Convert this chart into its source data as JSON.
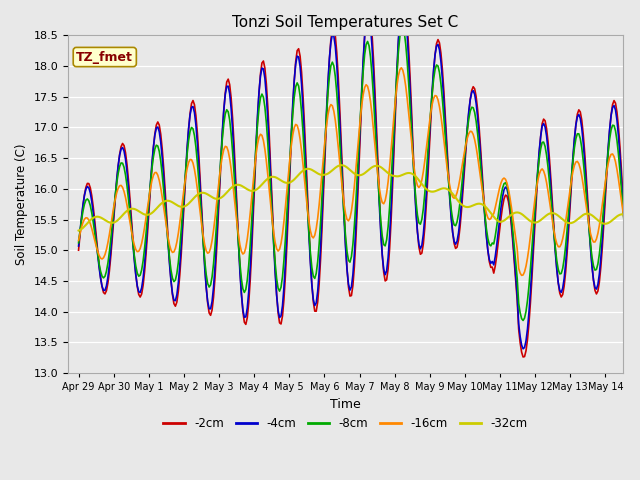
{
  "title": "Tonzi Soil Temperatures Set C",
  "xlabel": "Time",
  "ylabel": "Soil Temperature (C)",
  "ylim": [
    13.0,
    18.5
  ],
  "bg_color": "#e8e8e8",
  "label_box_text": "TZ_fmet",
  "label_box_color": "#ffffcc",
  "label_box_edge": "#aa8800",
  "series": {
    "-2cm": {
      "color": "#cc0000",
      "lw": 1.2
    },
    "-4cm": {
      "color": "#0000cc",
      "lw": 1.2
    },
    "-8cm": {
      "color": "#00aa00",
      "lw": 1.2
    },
    "-16cm": {
      "color": "#ff8800",
      "lw": 1.2
    },
    "-32cm": {
      "color": "#cccc00",
      "lw": 1.5
    }
  },
  "x_tick_labels": [
    "Apr 29",
    "Apr 30",
    "May 1",
    "May 2",
    "May 3",
    "May 4",
    "May 5",
    "May 6",
    "May 7",
    "May 8",
    "May 9",
    "May 10",
    "May 11",
    "May 12",
    "May 13",
    "May 14"
  ],
  "pts_per_day": 24
}
